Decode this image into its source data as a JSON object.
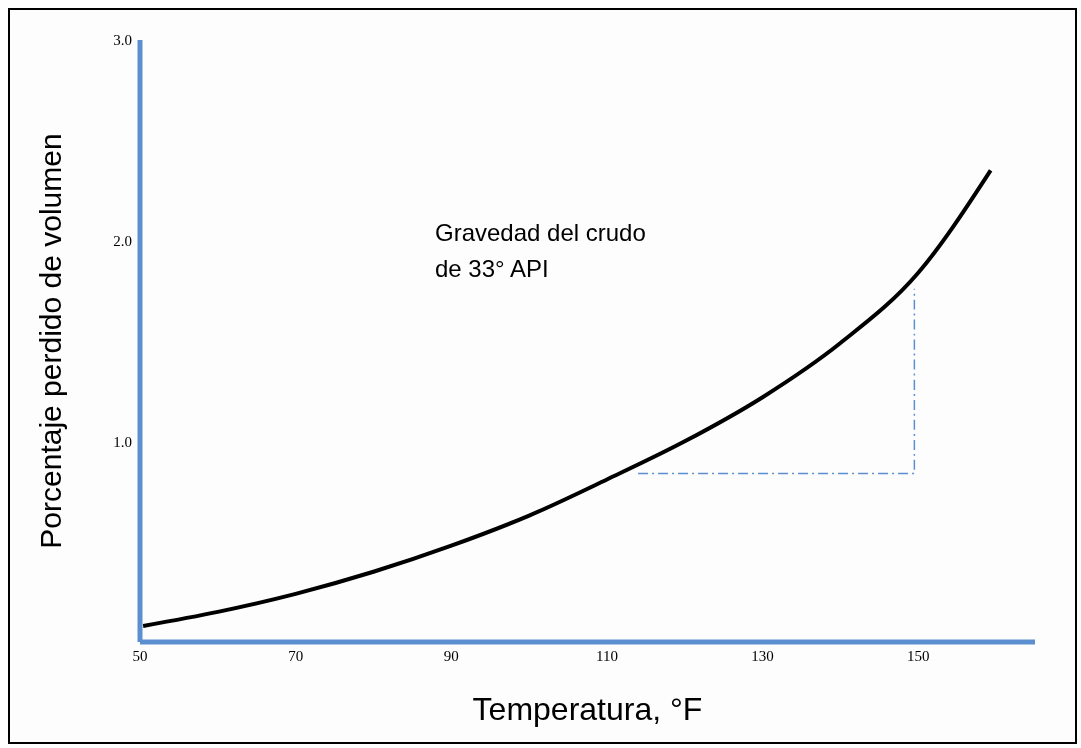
{
  "chart_data": {
    "type": "line",
    "xlabel": "Temperatura, °F",
    "ylabel": "Porcentaje perdido de volumen",
    "annotations": [
      "Gravedad del crudo\nde 33° API"
    ],
    "xlim": [
      50,
      165
    ],
    "xticks": [
      50,
      70,
      90,
      110,
      130,
      150
    ],
    "ylim": [
      0,
      3
    ],
    "yticks": [
      {
        "value": 1,
        "label": "1.0"
      },
      {
        "value": 2,
        "label": "2.0"
      },
      {
        "value": 3,
        "label": "3.0"
      }
    ],
    "marker": "none",
    "series": [
      {
        "color": "#000000",
        "line_style": "solid",
        "x": [
          50.4,
          60,
          70,
          80,
          90,
          100,
          110,
          120,
          130,
          140,
          150,
          159.3
        ],
        "values": [
          0.08,
          0.15,
          0.24,
          0.35,
          0.48,
          0.63,
          0.81,
          1.0,
          1.22,
          1.49,
          1.84,
          2.35
        ]
      },
      {
        "color": "#5b8fd0",
        "line_style": "dashed",
        "x": [
          114,
          149.5,
          149.5
        ],
        "values": [
          0.84,
          0.84,
          1.76
        ]
      }
    ]
  }
}
